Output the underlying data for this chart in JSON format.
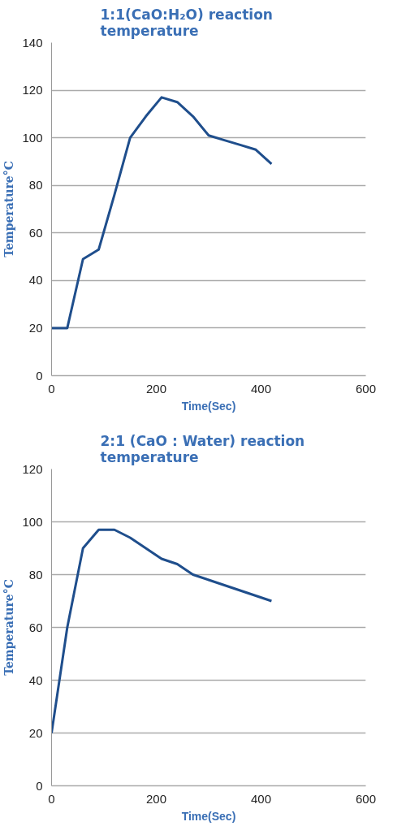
{
  "chart_data": [
    {
      "type": "line",
      "title": "1:1(CaO:H₂O) reaction temperature",
      "xlabel": "Time(Sec)",
      "ylabel": "Temperature°C",
      "x": [
        0,
        30,
        60,
        90,
        120,
        150,
        180,
        210,
        240,
        270,
        300,
        330,
        360,
        390,
        420
      ],
      "series": [
        {
          "color": "#1f4e8c",
          "values": [
            20,
            20,
            49,
            53,
            76,
            100,
            109,
            117,
            115,
            109,
            101,
            99,
            97,
            95,
            89
          ]
        }
      ],
      "xlim": [
        0,
        600
      ],
      "xticks": [
        0,
        200,
        400,
        600
      ],
      "ylim": [
        0,
        140
      ],
      "yticks": [
        0,
        20,
        40,
        60,
        80,
        100,
        120,
        140
      ],
      "grid": "y",
      "marker": "none",
      "line_style": "solid"
    },
    {
      "type": "line",
      "title": "2:1 (CaO : Water) reaction temperature",
      "xlabel": "Time(Sec)",
      "ylabel": "Temperature°C",
      "x": [
        0,
        30,
        60,
        90,
        120,
        150,
        180,
        210,
        240,
        270,
        300,
        330,
        360,
        390,
        420
      ],
      "series": [
        {
          "color": "#1f4e8c",
          "values": [
            20,
            60,
            90,
            97,
            97,
            94,
            90,
            86,
            84,
            80,
            78,
            76,
            74,
            72,
            70
          ]
        }
      ],
      "xlim": [
        0,
        600
      ],
      "xticks": [
        0,
        200,
        400,
        600
      ],
      "ylim": [
        0,
        120
      ],
      "yticks": [
        0,
        20,
        40,
        60,
        80,
        100,
        120
      ],
      "grid": "y",
      "marker": "none",
      "line_style": "solid"
    }
  ]
}
